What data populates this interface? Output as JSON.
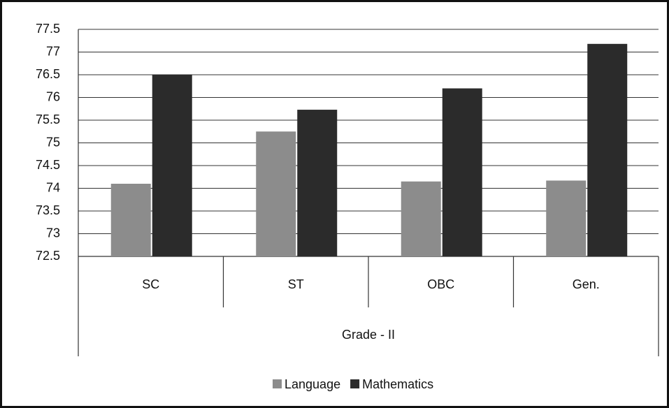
{
  "chart_data": {
    "type": "bar",
    "categories": [
      "SC",
      "ST",
      "OBC",
      "Gen."
    ],
    "group_label": "Grade - II",
    "series": [
      {
        "name": "Language",
        "color": "#8c8c8c",
        "values": [
          74.1,
          75.25,
          74.15,
          74.17
        ]
      },
      {
        "name": "Mathematics",
        "color": "#2b2b2b",
        "values": [
          76.5,
          75.73,
          76.2,
          77.18
        ]
      }
    ],
    "ylim": [
      72.5,
      77.5
    ],
    "yticks": [
      72.5,
      73,
      73.5,
      74,
      74.5,
      75,
      75.5,
      76,
      76.5,
      77,
      77.5
    ],
    "grid": true,
    "legend": "bottom"
  }
}
